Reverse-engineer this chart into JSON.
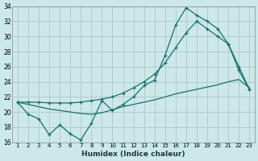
{
  "title": "",
  "xlabel": "Humidex (Indice chaleur)",
  "ylabel": "",
  "background_color": "#cce8e8",
  "grid_color": "#b0cccc",
  "line_color": "#1a6e6e",
  "xlim_min": 0.5,
  "xlim_max": 23.5,
  "ylim_min": 16,
  "ylim_max": 34,
  "yticks": [
    16,
    18,
    20,
    22,
    24,
    26,
    28,
    30,
    32,
    34
  ],
  "xticks": [
    1,
    2,
    3,
    4,
    5,
    6,
    7,
    8,
    9,
    10,
    11,
    12,
    13,
    14,
    15,
    16,
    17,
    18,
    19,
    20,
    21,
    22,
    23
  ],
  "line1_x": [
    1,
    2,
    3,
    4,
    5,
    6,
    7,
    8,
    9,
    10,
    11,
    12,
    13,
    14,
    15,
    16,
    17,
    18,
    19,
    20,
    21,
    22,
    23
  ],
  "line1_y": [
    21.3,
    19.7,
    19.1,
    17.0,
    18.3,
    17.1,
    16.3,
    18.5,
    21.5,
    20.2,
    21.0,
    22.0,
    23.5,
    24.2,
    27.5,
    31.5,
    33.8,
    32.8,
    32.0,
    31.0,
    29.0,
    26.0,
    23.0
  ],
  "line2_x": [
    1,
    2,
    3,
    4,
    5,
    6,
    7,
    8,
    9,
    10,
    11,
    12,
    13,
    14,
    15,
    16,
    17,
    18,
    19,
    20,
    21,
    22,
    23
  ],
  "line2_y": [
    21.3,
    21.0,
    20.7,
    20.4,
    20.2,
    20.0,
    19.8,
    19.7,
    19.9,
    20.3,
    20.7,
    21.0,
    21.3,
    21.6,
    22.0,
    22.4,
    22.7,
    23.0,
    23.3,
    23.6,
    24.0,
    24.3,
    23.2
  ],
  "line3_x": [
    1,
    2,
    3,
    4,
    5,
    6,
    7,
    8,
    9,
    10,
    11,
    12,
    13,
    14,
    15,
    16,
    17,
    18,
    19,
    20,
    21,
    22,
    23
  ],
  "line3_y": [
    21.3,
    21.3,
    21.3,
    21.2,
    21.2,
    21.2,
    21.3,
    21.5,
    21.7,
    22.0,
    22.5,
    23.2,
    24.0,
    25.0,
    26.5,
    28.5,
    30.5,
    32.0,
    31.0,
    30.0,
    29.0,
    25.5,
    23.0
  ],
  "line1_marker": "+",
  "line3_marker": "+"
}
